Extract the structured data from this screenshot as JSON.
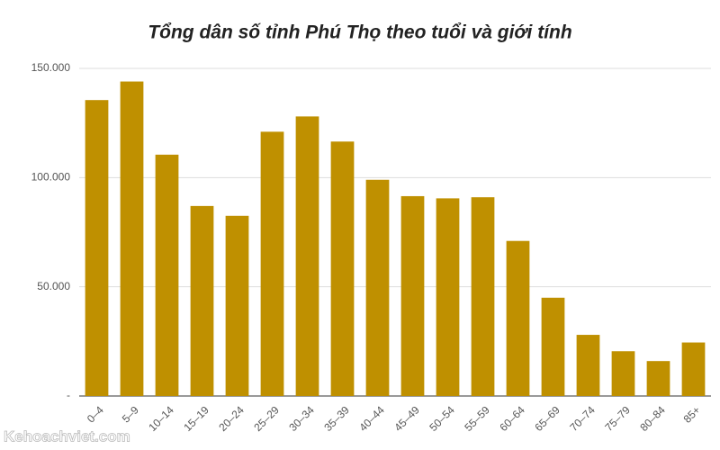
{
  "chart_data": {
    "type": "bar",
    "title": "Tổng dân số tỉnh Phú Thọ theo tuổi và giới tính",
    "categories": [
      "0–4",
      "5–9",
      "10–14",
      "15–19",
      "20–24",
      "25–29",
      "30–34",
      "35–39",
      "40–44",
      "45–49",
      "50–54",
      "55–59",
      "60–64",
      "65–69",
      "70–74",
      "75–79",
      "80–84",
      "85+"
    ],
    "values": [
      135500,
      144000,
      110500,
      87000,
      82500,
      121000,
      128000,
      116500,
      99000,
      91500,
      90500,
      91000,
      71000,
      45000,
      28000,
      20500,
      16000,
      24500
    ],
    "color": "#bf9000",
    "ylim": [
      0,
      150000
    ],
    "yticks": [
      {
        "value": 0,
        "label": "-"
      },
      {
        "value": 50000,
        "label": "50.000"
      },
      {
        "value": 100000,
        "label": "100.000"
      },
      {
        "value": 150000,
        "label": "150.000"
      }
    ],
    "grid": true
  },
  "watermark": "Kehoachviet.com"
}
